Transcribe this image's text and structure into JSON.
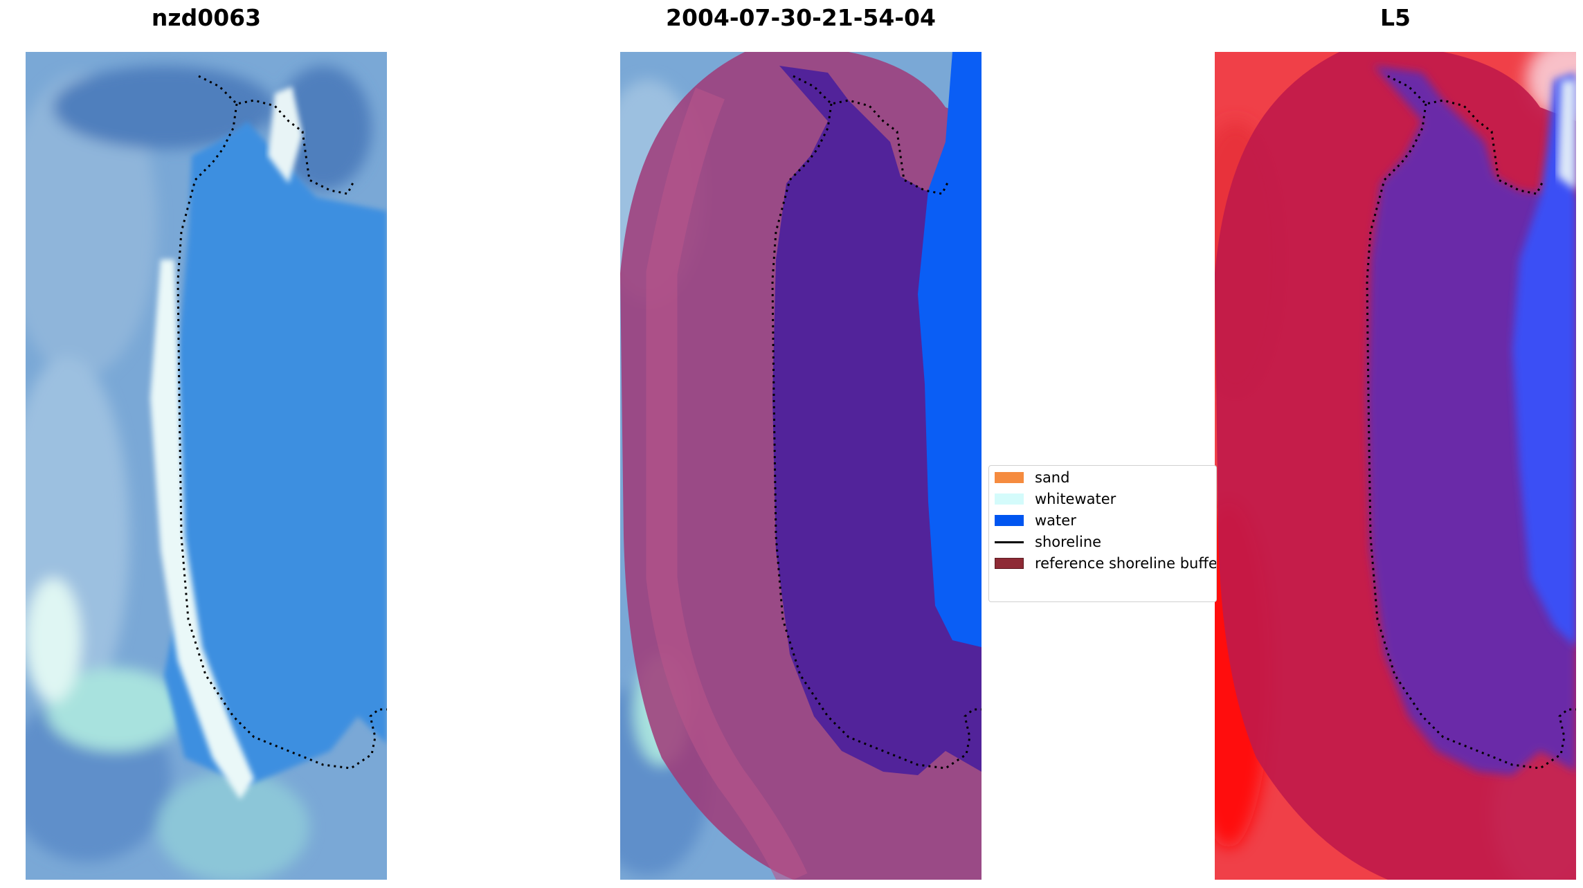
{
  "panels": [
    {
      "title": "nzd0063",
      "kind": "rgb"
    },
    {
      "title": "2004-07-30-21-54-04",
      "kind": "classified"
    },
    {
      "title": "L5",
      "kind": "index"
    }
  ],
  "legend": {
    "items": [
      {
        "label": "sand",
        "color": "#f58b3f",
        "marker": "patch"
      },
      {
        "label": "whitewater",
        "color": "#d4fbfb",
        "marker": "patch"
      },
      {
        "label": "water",
        "color": "#0055f0",
        "marker": "patch"
      },
      {
        "label": "shoreline",
        "color": "#000000",
        "marker": "line"
      },
      {
        "label": "reference shoreline buffer",
        "color": "#8e2a35",
        "marker": "patch"
      }
    ]
  },
  "colors": {
    "land_blue": "#6f9fd0",
    "water_blue": "#3e8fe0",
    "beach_white": "#e8f7f7",
    "buffer_overlay": "#a03a78",
    "classified_water": "#0a5ef5",
    "dark_water": "#52239a",
    "index_red": "#e2102c",
    "index_blue": "#3b4ff5",
    "index_purple": "#6a2ba8"
  }
}
